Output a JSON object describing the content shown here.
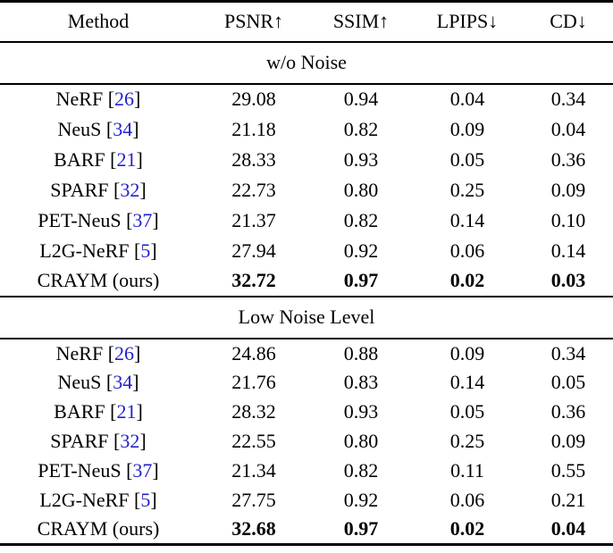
{
  "table": {
    "colors": {
      "citation_blue": "#2222CC",
      "rule": "#000000",
      "text": "#000000"
    },
    "header": {
      "columns": [
        "Method",
        "PSNR↑",
        "SSIM↑",
        "LPIPS↓",
        "CD↓"
      ]
    },
    "sections": [
      {
        "title": "w/o Noise",
        "rows": [
          {
            "name": "NeRF",
            "open": " [",
            "cite": "26",
            "close": "]",
            "psnr": "29.08",
            "ssim": "0.94",
            "lpips": "0.04",
            "cd": "0.34"
          },
          {
            "name": "NeuS",
            "open": " [",
            "cite": "34",
            "close": "]",
            "psnr": "21.18",
            "ssim": "0.82",
            "lpips": "0.09",
            "cd": "0.04"
          },
          {
            "name": "BARF",
            "open": " [",
            "cite": "21",
            "close": "]",
            "psnr": "28.33",
            "ssim": "0.93",
            "lpips": "0.05",
            "cd": "0.36"
          },
          {
            "name": "SPARF",
            "open": " [",
            "cite": "32",
            "close": "]",
            "psnr": "22.73",
            "ssim": "0.80",
            "lpips": "0.25",
            "cd": "0.09"
          },
          {
            "name": "PET-NeuS",
            "open": " [",
            "cite": "37",
            "close": "]",
            "psnr": "21.37",
            "ssim": "0.82",
            "lpips": "0.14",
            "cd": "0.10"
          },
          {
            "name": "L2G-NeRF",
            "open": " [",
            "cite": "5",
            "close": "]",
            "psnr": "27.94",
            "ssim": "0.92",
            "lpips": "0.06",
            "cd": "0.14"
          },
          {
            "name": "CRAYM (ours)",
            "open": "",
            "cite": "",
            "close": "",
            "psnr": "32.72",
            "ssim": "0.97",
            "lpips": "0.02",
            "cd": "0.03"
          }
        ]
      },
      {
        "title": "Low Noise Level",
        "rows": [
          {
            "name": "NeRF",
            "open": " [",
            "cite": "26",
            "close": "]",
            "psnr": "24.86",
            "ssim": "0.88",
            "lpips": "0.09",
            "cd": "0.34"
          },
          {
            "name": "NeuS",
            "open": " [",
            "cite": "34",
            "close": "]",
            "psnr": "21.76",
            "ssim": "0.83",
            "lpips": "0.14",
            "cd": "0.05"
          },
          {
            "name": "BARF",
            "open": " [",
            "cite": "21",
            "close": "]",
            "psnr": "28.32",
            "ssim": "0.93",
            "lpips": "0.05",
            "cd": "0.36"
          },
          {
            "name": "SPARF",
            "open": " [",
            "cite": "32",
            "close": "]",
            "psnr": "22.55",
            "ssim": "0.80",
            "lpips": "0.25",
            "cd": "0.09"
          },
          {
            "name": "PET-NeuS",
            "open": " [",
            "cite": "37",
            "close": "]",
            "psnr": "21.34",
            "ssim": "0.82",
            "lpips": "0.11",
            "cd": "0.55"
          },
          {
            "name": "L2G-NeRF",
            "open": " [",
            "cite": "5",
            "close": "]",
            "psnr": "27.75",
            "ssim": "0.92",
            "lpips": "0.06",
            "cd": "0.21"
          },
          {
            "name": "CRAYM (ours)",
            "open": "",
            "cite": "",
            "close": "",
            "psnr": "32.68",
            "ssim": "0.97",
            "lpips": "0.02",
            "cd": "0.04"
          }
        ]
      }
    ]
  }
}
